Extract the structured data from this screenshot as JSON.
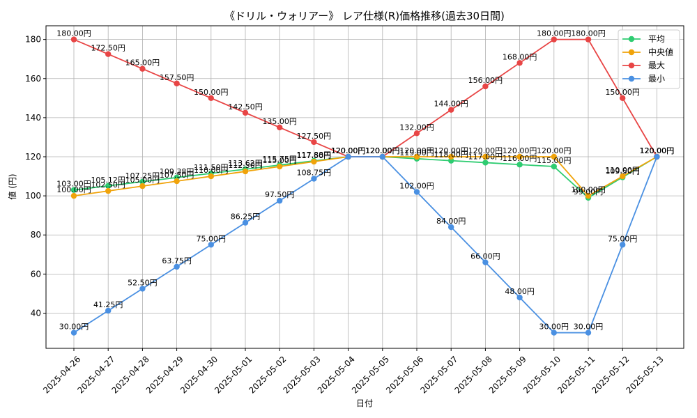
{
  "chart_data": {
    "type": "line",
    "title": "《ドリル・ウォリアー》 レア仕様(R)価格推移(過去30日間)",
    "xlabel": "日付",
    "ylabel": "値 (円)",
    "ylim": [
      22,
      187
    ],
    "yticks": [
      40,
      60,
      80,
      100,
      120,
      140,
      160,
      180
    ],
    "grid": true,
    "legend_position": "top-right",
    "x": [
      "2025-04-26",
      "2025-04-27",
      "2025-04-28",
      "2025-04-29",
      "2025-04-30",
      "2025-05-01",
      "2025-05-02",
      "2025-05-03",
      "2025-05-04",
      "2025-05-05",
      "2025-05-06",
      "2025-05-07",
      "2025-05-08",
      "2025-05-09",
      "2025-05-10",
      "2025-05-11",
      "2025-05-12",
      "2025-05-13"
    ],
    "series": [
      {
        "name": "平均",
        "color": "#2ecc71",
        "values": [
          103.0,
          105.12,
          107.25,
          109.38,
          111.5,
          113.62,
          115.75,
          117.88,
          120.0,
          120.0,
          119.0,
          118.0,
          117.0,
          116.0,
          115.0,
          99.0,
          109.5,
          120.0
        ],
        "labels": [
          "103.00円",
          "105.12円",
          "107.25円",
          "109.38円",
          "111.50円",
          "113.62円",
          "115.75円",
          "117.88円",
          "120.00円",
          "120.00円",
          "119.00円",
          "118.00円",
          "117.00円",
          "116.00円",
          "115.00円",
          "99.00円",
          "109.50円",
          "120.00円"
        ]
      },
      {
        "name": "中央値",
        "color": "#f0a30a",
        "values": [
          100.0,
          102.5,
          105.0,
          107.5,
          110.0,
          112.5,
          115.0,
          117.5,
          120.0,
          120.0,
          120.0,
          120.0,
          120.0,
          120.0,
          120.0,
          100.0,
          110.0,
          120.0
        ],
        "labels": [
          "100.00円",
          "102.50円",
          "105.00円",
          "107.50円",
          "110.00円",
          "112.50円",
          "115.00円",
          "117.50円",
          "120.00円",
          "120.00円",
          "120.00円",
          "120.00円",
          "120.00円",
          "120.00円",
          "120.00円",
          "100.00円",
          "110.00円",
          "120.00円"
        ]
      },
      {
        "name": "最大",
        "color": "#e84545",
        "values": [
          180.0,
          172.5,
          165.0,
          157.5,
          150.0,
          142.5,
          135.0,
          127.5,
          120.0,
          120.0,
          132.0,
          144.0,
          156.0,
          168.0,
          180.0,
          180.0,
          150.0,
          120.0
        ],
        "labels": [
          "180.00円",
          "172.50円",
          "165.00円",
          "157.50円",
          "150.00円",
          "142.50円",
          "135.00円",
          "127.50円",
          "120.00円",
          "120.00円",
          "132.00円",
          "144.00円",
          "156.00円",
          "168.00円",
          "180.00円",
          "180.00円",
          "150.00円",
          "120.00円"
        ]
      },
      {
        "name": "最小",
        "color": "#4a90e2",
        "values": [
          30.0,
          41.25,
          52.5,
          63.75,
          75.0,
          86.25,
          97.5,
          108.75,
          120.0,
          120.0,
          102.0,
          84.0,
          66.0,
          48.0,
          30.0,
          30.0,
          75.0,
          120.0
        ],
        "labels": [
          "30.00円",
          "41.25円",
          "52.50円",
          "63.75円",
          "75.00円",
          "86.25円",
          "97.50円",
          "108.75円",
          "120.00円",
          "120.00円",
          "102.00円",
          "84.00円",
          "66.00円",
          "48.00円",
          "30.00円",
          "30.00円",
          "75.00円",
          "120.00円"
        ]
      }
    ]
  }
}
